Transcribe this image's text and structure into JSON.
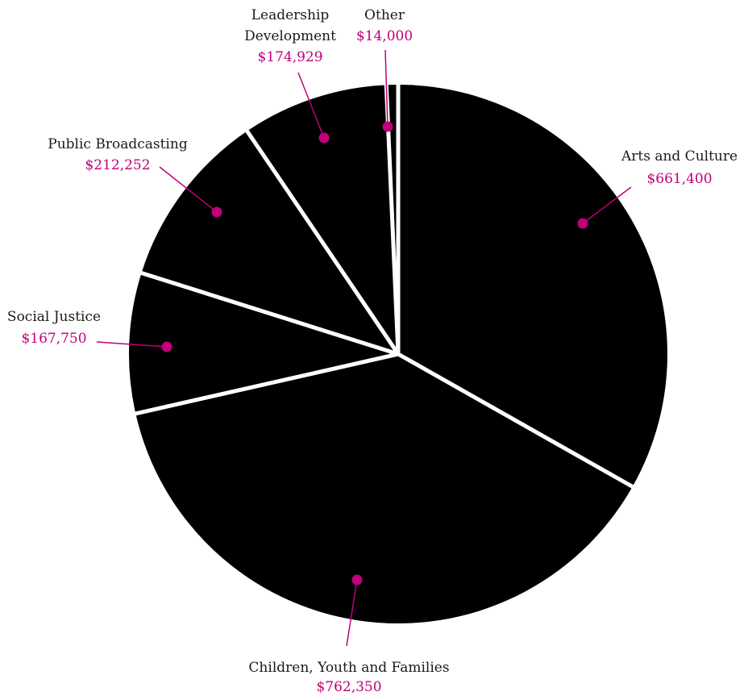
{
  "colors": {
    "slice": "#000000",
    "separator": "#ffffff",
    "accent": "#c0007a",
    "label": "#1a1a1a"
  },
  "chart_data": {
    "type": "pie",
    "title": "",
    "start_angle_deg": 0,
    "direction": "clockwise",
    "categories": [
      "Arts and Culture",
      "Children, Youth and Families",
      "Social Justice",
      "Public Broadcasting",
      "Leadership Development",
      "Other"
    ],
    "values": [
      661400,
      762350,
      167750,
      212252,
      174929,
      14000
    ],
    "value_labels": [
      "$661,400",
      "$762,350",
      "$167,750",
      "$212,252",
      "$174,929",
      "$14,000"
    ],
    "legend": "none"
  }
}
